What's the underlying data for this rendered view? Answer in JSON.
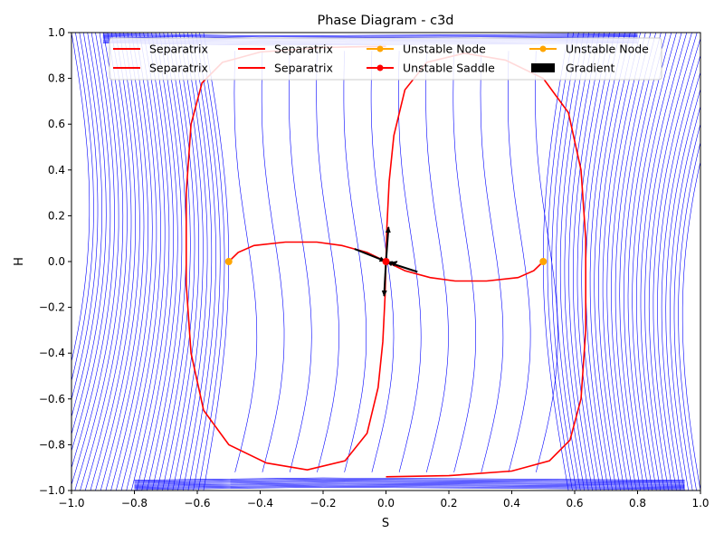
{
  "chart_data": {
    "type": "line",
    "title": "Phase Diagram - c3d",
    "xlabel": "S",
    "ylabel": "H",
    "xlim": [
      -1.0,
      1.0
    ],
    "ylim": [
      -1.0,
      1.0
    ],
    "xticks": [
      "−1.0",
      "−0.8",
      "−0.6",
      "−0.4",
      "−0.2",
      "0.0",
      "0.2",
      "0.4",
      "0.6",
      "0.8",
      "1.0"
    ],
    "yticks": [
      "−1.0",
      "−0.8",
      "−0.6",
      "−0.4",
      "−0.2",
      "0.0",
      "0.2",
      "0.4",
      "0.6",
      "0.8",
      "1.0"
    ],
    "grid": false,
    "legend_position": "top",
    "legend": [
      {
        "label": "Separatrix",
        "kind": "line",
        "color": "#ff0000"
      },
      {
        "label": "Separatrix",
        "kind": "line",
        "color": "#ff0000"
      },
      {
        "label": "Separatrix",
        "kind": "line",
        "color": "#ff0000"
      },
      {
        "label": "Separatrix",
        "kind": "line",
        "color": "#ff0000"
      },
      {
        "label": "Unstable Node",
        "kind": "marker-line",
        "color": "#ffa500"
      },
      {
        "label": "Unstable Saddle",
        "kind": "marker-line",
        "color": "#ff0000"
      },
      {
        "label": "Unstable Node",
        "kind": "marker-line",
        "color": "#ffa500"
      },
      {
        "label": "Gradient",
        "kind": "patch",
        "color": "#000000"
      }
    ],
    "colors": {
      "flow": "#0000ff",
      "separatrix": "#ff0000",
      "node": "#ffa500",
      "saddle": "#ff0000",
      "gradient": "#000000"
    },
    "separatrices": [
      {
        "name": "Separatrix",
        "points": [
          [
            0.0,
            0.0
          ],
          [
            -0.06,
            0.04
          ],
          [
            -0.14,
            0.07
          ],
          [
            -0.22,
            0.085
          ],
          [
            -0.32,
            0.085
          ],
          [
            -0.42,
            0.07
          ],
          [
            -0.47,
            0.04
          ],
          [
            -0.5,
            0.0
          ]
        ]
      },
      {
        "name": "Separatrix",
        "points": [
          [
            0.0,
            0.0
          ],
          [
            0.06,
            -0.04
          ],
          [
            0.14,
            -0.07
          ],
          [
            0.22,
            -0.085
          ],
          [
            0.32,
            -0.085
          ],
          [
            0.42,
            -0.07
          ],
          [
            0.47,
            -0.04
          ],
          [
            0.5,
            0.0
          ]
        ]
      },
      {
        "name": "Separatrix",
        "points": [
          [
            0.0,
            0.0
          ],
          [
            0.003,
            0.15
          ],
          [
            0.01,
            0.35
          ],
          [
            0.025,
            0.55
          ],
          [
            0.06,
            0.75
          ],
          [
            0.13,
            0.87
          ],
          [
            0.25,
            0.91
          ],
          [
            0.38,
            0.88
          ],
          [
            0.5,
            0.8
          ],
          [
            0.58,
            0.65
          ],
          [
            0.62,
            0.4
          ],
          [
            0.635,
            0.1
          ],
          [
            0.635,
            -0.3
          ],
          [
            0.62,
            -0.6
          ],
          [
            0.585,
            -0.78
          ],
          [
            0.52,
            -0.87
          ],
          [
            0.4,
            -0.915
          ],
          [
            0.2,
            -0.935
          ],
          [
            0.0,
            -0.94
          ]
        ]
      },
      {
        "name": "Separatrix",
        "points": [
          [
            0.0,
            0.0
          ],
          [
            -0.003,
            -0.15
          ],
          [
            -0.01,
            -0.35
          ],
          [
            -0.025,
            -0.55
          ],
          [
            -0.06,
            -0.75
          ],
          [
            -0.13,
            -0.87
          ],
          [
            -0.25,
            -0.91
          ],
          [
            -0.38,
            -0.88
          ],
          [
            -0.5,
            -0.8
          ],
          [
            -0.58,
            -0.65
          ],
          [
            -0.62,
            -0.4
          ],
          [
            -0.635,
            -0.1
          ],
          [
            -0.635,
            0.3
          ],
          [
            -0.62,
            0.6
          ],
          [
            -0.585,
            0.78
          ],
          [
            -0.52,
            0.87
          ],
          [
            -0.4,
            0.915
          ],
          [
            -0.2,
            0.935
          ],
          [
            0.0,
            0.94
          ]
        ]
      }
    ],
    "unstable_nodes": [
      [
        -0.5,
        0.0
      ],
      [
        0.5,
        0.0
      ]
    ],
    "unstable_saddle": [
      0.0,
      0.0
    ],
    "gradient_arrows": [
      {
        "from": [
          -0.1,
          0.055
        ],
        "to": [
          -0.003,
          0.002
        ]
      },
      {
        "from": [
          0.1,
          -0.045
        ],
        "to": [
          0.003,
          -0.002
        ]
      },
      {
        "from": [
          0.0,
          0.0
        ],
        "to": [
          0.008,
          0.15
        ]
      },
      {
        "from": [
          0.0,
          0.0
        ],
        "to": [
          -0.006,
          -0.15
        ]
      },
      {
        "from": [
          0.02,
          -0.012
        ],
        "to": [
          0.035,
          0.0
        ]
      }
    ]
  }
}
